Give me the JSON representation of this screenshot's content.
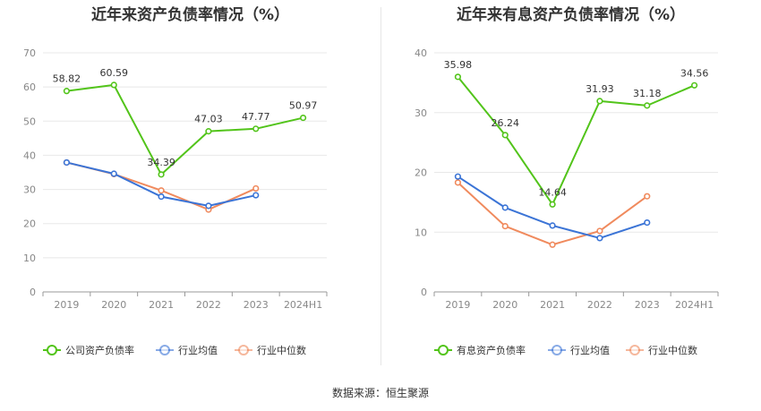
{
  "source_label": "数据来源：恒生聚源",
  "colors": {
    "company": "#52c41a",
    "industry_avg": "#3b74d6",
    "industry_median": "#f08a5d",
    "grid": "#e8e8e8",
    "axis": "#999999"
  },
  "chart_data": [
    {
      "type": "line",
      "title": "近年来资产负债率情况（%）",
      "categories": [
        "2019",
        "2020",
        "2021",
        "2022",
        "2023",
        "2024H1"
      ],
      "ylim": [
        0,
        70
      ],
      "yticks": [
        0,
        10,
        20,
        30,
        40,
        50,
        60,
        70
      ],
      "series": [
        {
          "name": "公司资产负债率",
          "key": "company",
          "values": [
            58.82,
            60.59,
            34.39,
            47.03,
            47.77,
            50.97
          ],
          "labels": [
            "58.82",
            "60.59",
            "34.39",
            "47.03",
            "47.77",
            "50.97"
          ]
        },
        {
          "name": "行业均值",
          "key": "industry_avg",
          "values": [
            37.9,
            34.6,
            27.9,
            25.2,
            28.3,
            null
          ]
        },
        {
          "name": "行业中位数",
          "key": "industry_median",
          "values": [
            37.9,
            34.5,
            29.7,
            24.1,
            30.3,
            null
          ]
        }
      ]
    },
    {
      "type": "line",
      "title": "近年来有息资产负债率情况（%）",
      "categories": [
        "2019",
        "2020",
        "2021",
        "2022",
        "2023",
        "2024H1"
      ],
      "ylim": [
        0,
        40
      ],
      "yticks": [
        0,
        10,
        20,
        30,
        40
      ],
      "series": [
        {
          "name": "有息资产负债率",
          "key": "company",
          "values": [
            35.98,
            26.24,
            14.64,
            31.93,
            31.18,
            34.56
          ],
          "labels": [
            "35.98",
            "26.24",
            "14.64",
            "31.93",
            "31.18",
            "34.56"
          ]
        },
        {
          "name": "行业均值",
          "key": "industry_avg",
          "values": [
            19.3,
            14.1,
            11.1,
            9.0,
            11.6,
            null
          ]
        },
        {
          "name": "行业中位数",
          "key": "industry_median",
          "values": [
            18.3,
            11.0,
            7.9,
            10.2,
            16.0,
            null
          ]
        }
      ]
    }
  ]
}
